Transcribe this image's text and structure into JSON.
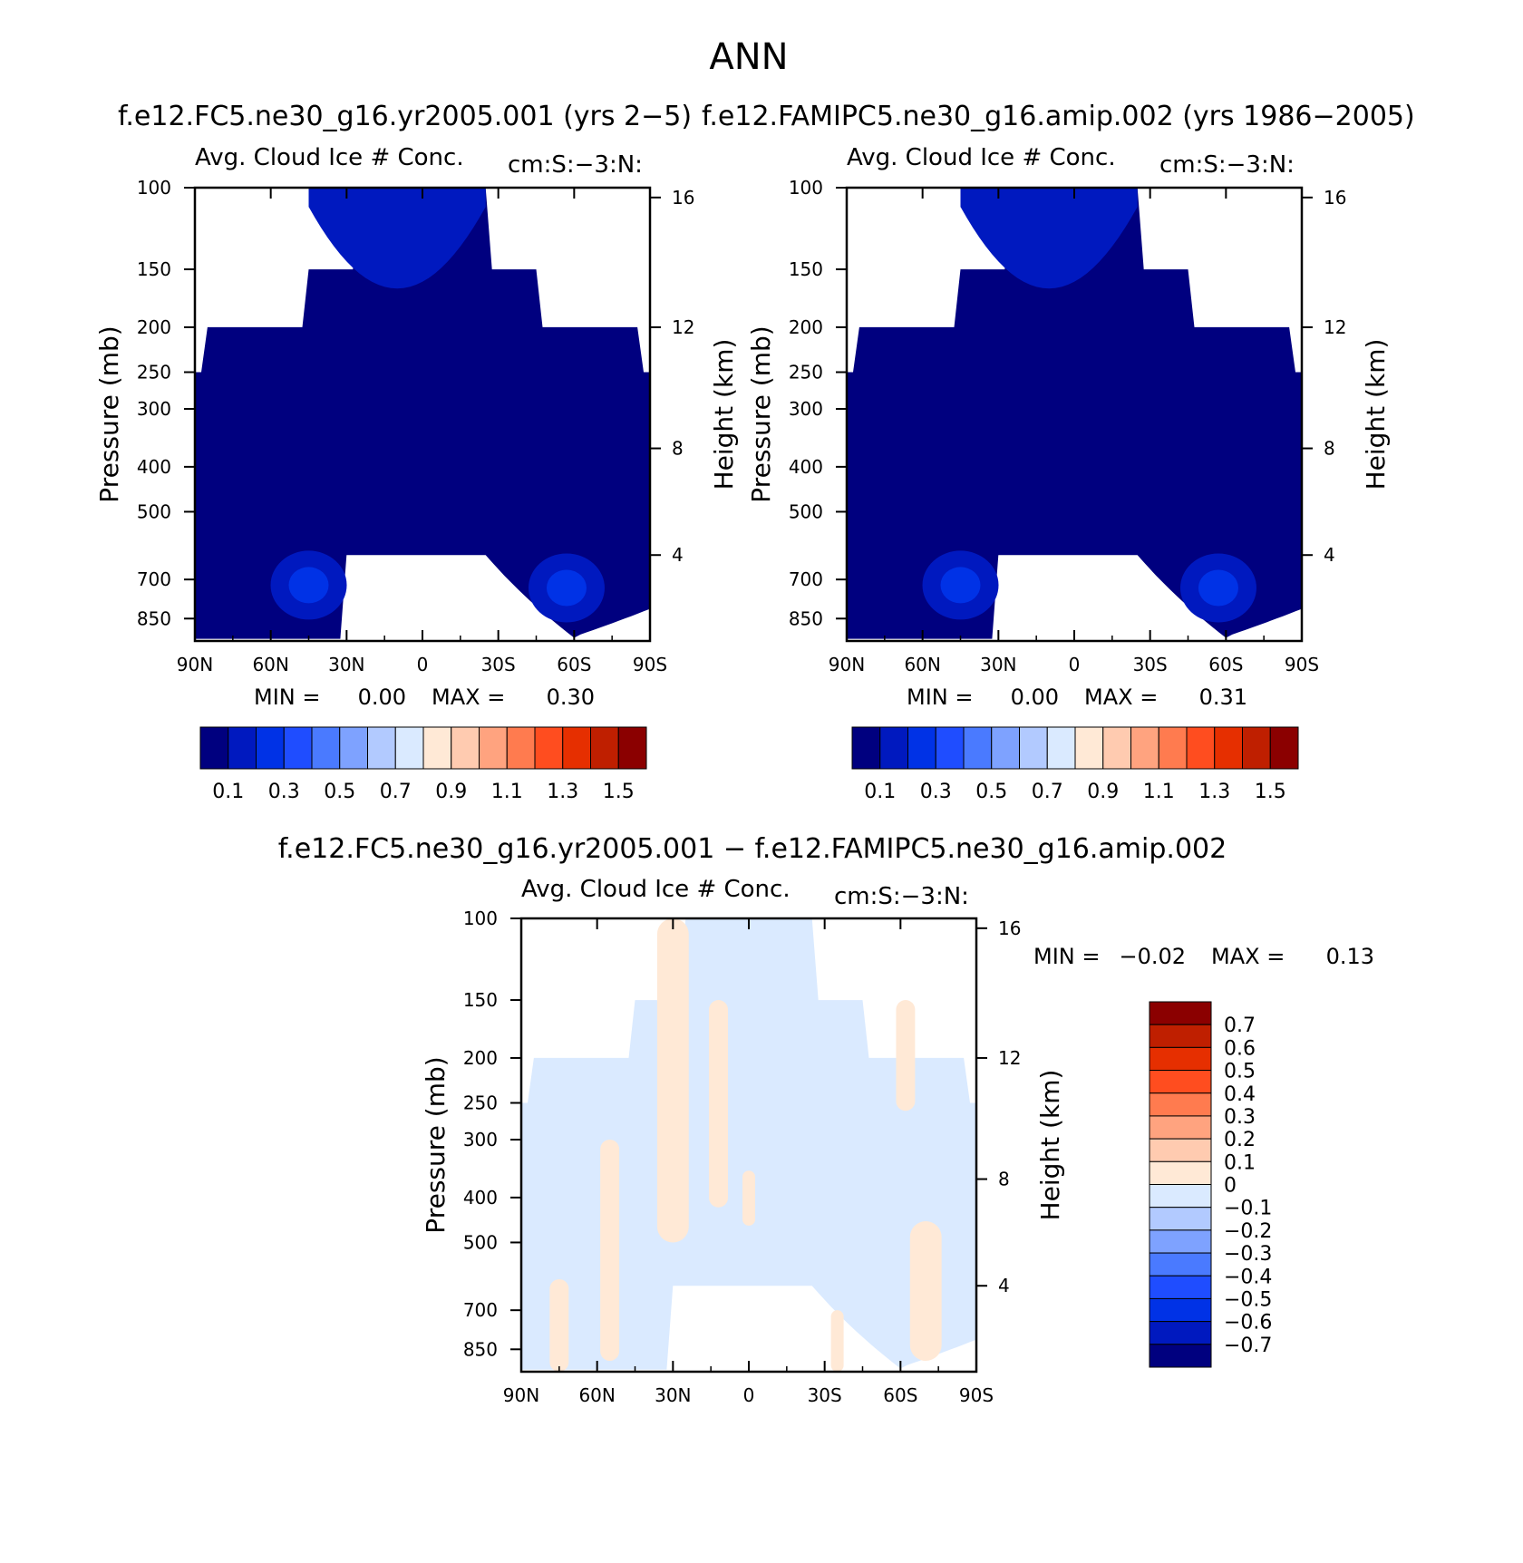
{
  "figure": {
    "title": "ANN",
    "diff_title": "f.e12.FC5.ne30_g16.yr2005.001 − f.e12.FAMIPC5.ne30_g16.amip.002"
  },
  "chart_data": [
    {
      "type": "heatmap",
      "title": "f.e12.FC5.ne30_g16.yr2005.001 (yrs 2−5)",
      "subtitle_left": "Avg. Cloud Ice # Conc.",
      "subtitle_right": "cm:S:−3:N:",
      "xlabel": "",
      "ylabel": "Pressure (mb)",
      "ylabel_right": "Height (km)",
      "x_ticks": [
        "90N",
        "60N",
        "30N",
        "0",
        "30S",
        "60S",
        "90S"
      ],
      "y_ticks": [
        "100",
        "150",
        "200",
        "250",
        "300",
        "400",
        "500",
        "700",
        "850"
      ],
      "y_right_ticks": [
        "16",
        "12",
        "8",
        "4"
      ],
      "y_scale": "log",
      "ylim": [
        100,
        950
      ],
      "xlim": [
        90,
        -90
      ],
      "min_label": "MIN =",
      "min_value": "0.00",
      "max_label": "MAX =",
      "max_value": "0.30",
      "colorbar": {
        "orientation": "horizontal",
        "labels": [
          "0.1",
          "0.3",
          "0.5",
          "0.7",
          "0.9",
          "1.1",
          "1.3",
          "1.5"
        ],
        "colors": [
          "#00007f",
          "#0019bf",
          "#0032e6",
          "#1f4dff",
          "#4a7aff",
          "#7ea2ff",
          "#b2caff",
          "#daeaff",
          "#ffe9d6",
          "#ffcbb0",
          "#ffa37f",
          "#ff7b4f",
          "#ff4d1f",
          "#e62f00",
          "#bf1f00",
          "#8b0000"
        ]
      }
    },
    {
      "type": "heatmap",
      "title": "f.e12.FAMIPC5.ne30_g16.amip.002 (yrs 1986−2005)",
      "subtitle_left": "Avg. Cloud Ice # Conc.",
      "subtitle_right": "cm:S:−3:N:",
      "xlabel": "",
      "ylabel": "Pressure (mb)",
      "ylabel_right": "Height (km)",
      "x_ticks": [
        "90N",
        "60N",
        "30N",
        "0",
        "30S",
        "60S",
        "90S"
      ],
      "y_ticks": [
        "100",
        "150",
        "200",
        "250",
        "300",
        "400",
        "500",
        "700",
        "850"
      ],
      "y_right_ticks": [
        "16",
        "12",
        "8",
        "4"
      ],
      "y_scale": "log",
      "ylim": [
        100,
        950
      ],
      "xlim": [
        90,
        -90
      ],
      "min_label": "MIN =",
      "min_value": "0.00",
      "max_label": "MAX =",
      "max_value": "0.31",
      "colorbar": {
        "orientation": "horizontal",
        "labels": [
          "0.1",
          "0.3",
          "0.5",
          "0.7",
          "0.9",
          "1.1",
          "1.3",
          "1.5"
        ],
        "colors": [
          "#00007f",
          "#0019bf",
          "#0032e6",
          "#1f4dff",
          "#4a7aff",
          "#7ea2ff",
          "#b2caff",
          "#daeaff",
          "#ffe9d6",
          "#ffcbb0",
          "#ffa37f",
          "#ff7b4f",
          "#ff4d1f",
          "#e62f00",
          "#bf1f00",
          "#8b0000"
        ]
      }
    },
    {
      "type": "heatmap",
      "title": "",
      "subtitle_left": "Avg. Cloud Ice # Conc.",
      "subtitle_right": "cm:S:−3:N:",
      "xlabel": "",
      "ylabel": "Pressure (mb)",
      "ylabel_right": "Height (km)",
      "x_ticks": [
        "90N",
        "60N",
        "30N",
        "0",
        "30S",
        "60S",
        "90S"
      ],
      "y_ticks": [
        "100",
        "150",
        "200",
        "250",
        "300",
        "400",
        "500",
        "700",
        "850"
      ],
      "y_right_ticks": [
        "16",
        "12",
        "8",
        "4"
      ],
      "y_scale": "log",
      "ylim": [
        100,
        950
      ],
      "xlim": [
        90,
        -90
      ],
      "min_label": "MIN =",
      "min_value": "−0.02",
      "max_label": "MAX =",
      "max_value": "0.13",
      "colorbar": {
        "orientation": "vertical",
        "labels": [
          "0.7",
          "0.6",
          "0.5",
          "0.4",
          "0.3",
          "0.2",
          "0.1",
          "0",
          "−0.1",
          "−0.2",
          "−0.3",
          "−0.4",
          "−0.5",
          "−0.6",
          "−0.7"
        ],
        "colors": [
          "#8b0000",
          "#bf1f00",
          "#e62f00",
          "#ff4d1f",
          "#ff7b4f",
          "#ffa37f",
          "#ffcbb0",
          "#ffe9d6",
          "#daeaff",
          "#b2caff",
          "#7ea2ff",
          "#4a7aff",
          "#1f4dff",
          "#0032e6",
          "#0019bf",
          "#00007f"
        ]
      }
    }
  ]
}
